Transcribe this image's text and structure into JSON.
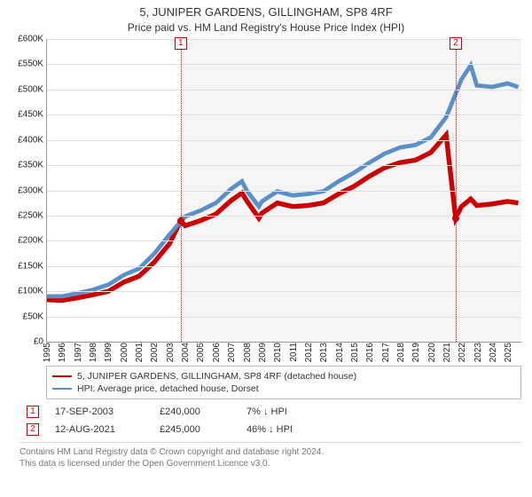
{
  "title": "5, JUNIPER GARDENS, GILLINGHAM, SP8 4RF",
  "subtitle": "Price paid vs. HM Land Registry's House Price Index (HPI)",
  "chart": {
    "type": "line",
    "background_color": "#ffffff",
    "grid_color": "#e0e0e0",
    "axis_color": "#999999",
    "tick_fontsize": 10,
    "x": {
      "min": 1995,
      "max": 2025.9,
      "ticks": [
        1995,
        1996,
        1997,
        1998,
        1999,
        2000,
        2001,
        2002,
        2003,
        2004,
        2005,
        2006,
        2007,
        2008,
        2009,
        2010,
        2011,
        2012,
        2013,
        2014,
        2015,
        2016,
        2017,
        2018,
        2019,
        2020,
        2021,
        2022,
        2023,
        2024,
        2025
      ]
    },
    "y": {
      "min": 0,
      "max": 600000,
      "tick_step": 50000,
      "tick_labels": [
        "£0",
        "£50K",
        "£100K",
        "£150K",
        "£200K",
        "£250K",
        "£300K",
        "£350K",
        "£400K",
        "£450K",
        "£500K",
        "£550K",
        "£600K"
      ]
    },
    "shade_from_year": 2003.71,
    "series": [
      {
        "name": "property",
        "label": "5, JUNIPER GARDENS, GILLINGHAM, SP8 4RF (detached house)",
        "color": "#cc0000",
        "line_width": 1.8,
        "points": [
          [
            1995,
            83000
          ],
          [
            1996,
            82000
          ],
          [
            1997,
            87000
          ],
          [
            1998,
            93000
          ],
          [
            1999,
            100000
          ],
          [
            2000,
            118000
          ],
          [
            2001,
            130000
          ],
          [
            2002,
            158000
          ],
          [
            2003,
            195000
          ],
          [
            2003.71,
            240000
          ],
          [
            2004,
            230000
          ],
          [
            2005,
            240000
          ],
          [
            2006,
            253000
          ],
          [
            2007,
            280000
          ],
          [
            2007.7,
            295000
          ],
          [
            2008,
            280000
          ],
          [
            2008.8,
            245000
          ],
          [
            2009,
            255000
          ],
          [
            2010,
            275000
          ],
          [
            2011,
            268000
          ],
          [
            2012,
            270000
          ],
          [
            2013,
            275000
          ],
          [
            2014,
            293000
          ],
          [
            2015,
            308000
          ],
          [
            2016,
            328000
          ],
          [
            2017,
            345000
          ],
          [
            2018,
            355000
          ],
          [
            2019,
            360000
          ],
          [
            2020,
            375000
          ],
          [
            2021,
            410000
          ],
          [
            2021.62,
            245000
          ],
          [
            2022,
            268000
          ],
          [
            2022.6,
            283000
          ],
          [
            2023,
            270000
          ],
          [
            2024,
            273000
          ],
          [
            2025,
            278000
          ],
          [
            2025.7,
            275000
          ]
        ]
      },
      {
        "name": "hpi",
        "label": "HPI: Average price, detached house, Dorset",
        "color": "#5a8fc8",
        "line_width": 1.6,
        "points": [
          [
            1995,
            90000
          ],
          [
            1996,
            90000
          ],
          [
            1997,
            96000
          ],
          [
            1998,
            103000
          ],
          [
            1999,
            113000
          ],
          [
            2000,
            132000
          ],
          [
            2001,
            145000
          ],
          [
            2002,
            175000
          ],
          [
            2003,
            213000
          ],
          [
            2004,
            248000
          ],
          [
            2005,
            260000
          ],
          [
            2006,
            275000
          ],
          [
            2007,
            303000
          ],
          [
            2007.7,
            318000
          ],
          [
            2008,
            300000
          ],
          [
            2008.8,
            268000
          ],
          [
            2009,
            278000
          ],
          [
            2010,
            298000
          ],
          [
            2011,
            290000
          ],
          [
            2012,
            293000
          ],
          [
            2013,
            298000
          ],
          [
            2014,
            318000
          ],
          [
            2015,
            335000
          ],
          [
            2016,
            355000
          ],
          [
            2017,
            373000
          ],
          [
            2018,
            385000
          ],
          [
            2019,
            390000
          ],
          [
            2020,
            405000
          ],
          [
            2021,
            445000
          ],
          [
            2022,
            520000
          ],
          [
            2022.6,
            548000
          ],
          [
            2023,
            508000
          ],
          [
            2024,
            505000
          ],
          [
            2025,
            512000
          ],
          [
            2025.7,
            505000
          ]
        ]
      }
    ],
    "markers": [
      {
        "n": "1",
        "year": 2003.71,
        "price": 240000
      },
      {
        "n": "2",
        "year": 2021.62,
        "price": 245000
      }
    ]
  },
  "legend": {
    "items": [
      {
        "key": "property",
        "color": "#cc0000"
      },
      {
        "key": "hpi",
        "color": "#5a8fc8"
      }
    ]
  },
  "sales": [
    {
      "n": "1",
      "date": "17-SEP-2003",
      "price": "£240,000",
      "diff": "7% ↓ HPI"
    },
    {
      "n": "2",
      "date": "12-AUG-2021",
      "price": "£245,000",
      "diff": "46% ↓ HPI"
    }
  ],
  "footer": {
    "line1": "Contains HM Land Registry data © Crown copyright and database right 2024.",
    "line2": "This data is licensed under the Open Government Licence v3.0."
  }
}
